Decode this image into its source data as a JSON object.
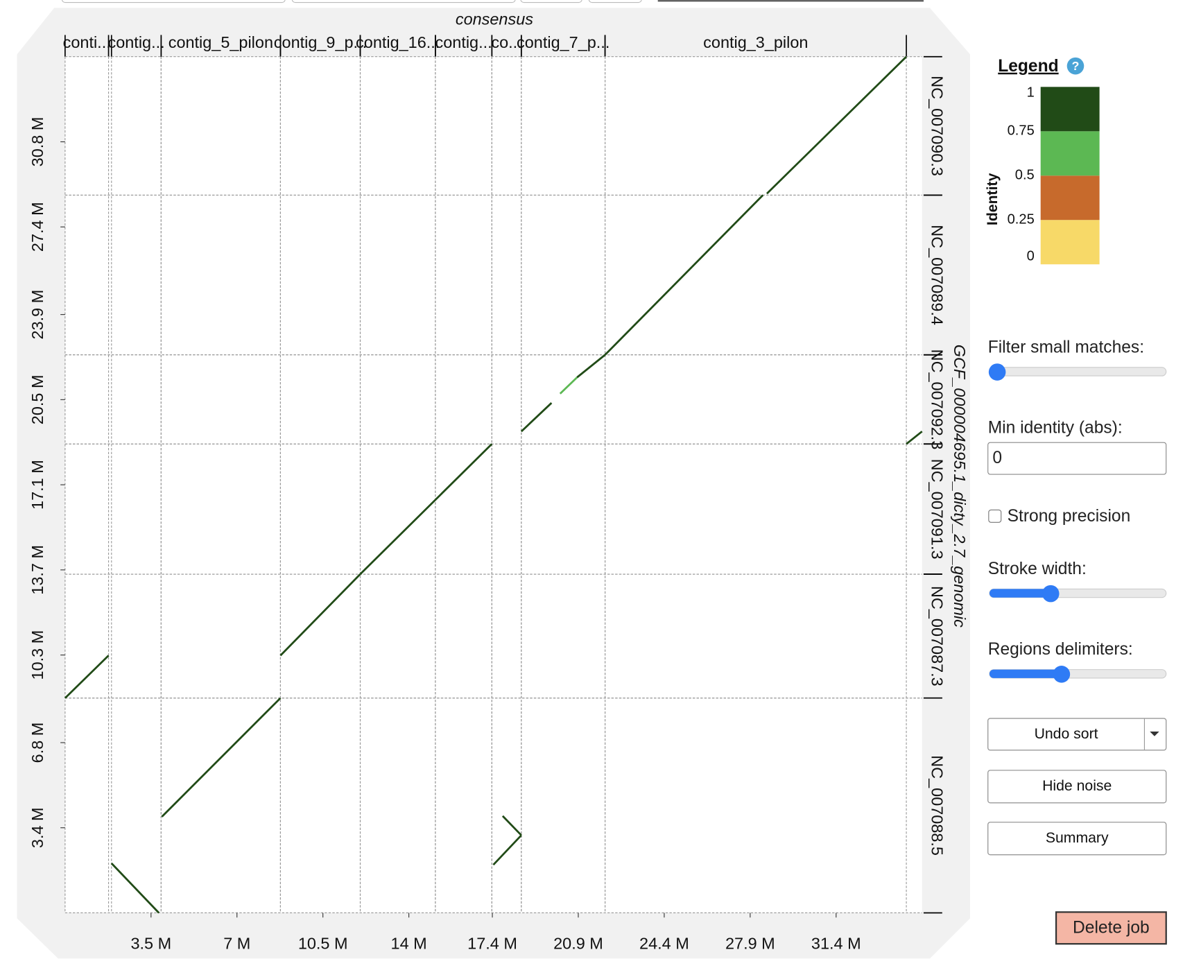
{
  "chart_data": {
    "type": "dotplot",
    "x_title": "consensus",
    "y_title": "GCF_000004695.1_dicty_2.7_genomic",
    "xlim": [
      0,
      34.9
    ],
    "ylim": [
      0,
      34.2
    ],
    "xticks": [
      {
        "value": 3.5,
        "label": "3.5 M"
      },
      {
        "value": 7,
        "label": "7 M"
      },
      {
        "value": 10.5,
        "label": "10.5 M"
      },
      {
        "value": 14,
        "label": "14 M"
      },
      {
        "value": 17.4,
        "label": "17.4 M"
      },
      {
        "value": 20.9,
        "label": "20.9 M"
      },
      {
        "value": 24.4,
        "label": "24.4 M"
      },
      {
        "value": 27.9,
        "label": "27.9 M"
      },
      {
        "value": 31.4,
        "label": "31.4 M"
      }
    ],
    "yticks": [
      {
        "value": 3.4,
        "label": "3.4 M"
      },
      {
        "value": 6.8,
        "label": "6.8 M"
      },
      {
        "value": 10.3,
        "label": "10.3 M"
      },
      {
        "value": 13.7,
        "label": "13.7 M"
      },
      {
        "value": 17.1,
        "label": "17.1 M"
      },
      {
        "value": 20.5,
        "label": "20.5 M"
      },
      {
        "value": 23.9,
        "label": "23.9 M"
      },
      {
        "value": 27.4,
        "label": "27.4 M"
      },
      {
        "value": 30.8,
        "label": "30.8 M"
      }
    ],
    "x_contigs": [
      {
        "label": "conti...",
        "start": 0,
        "end": 1.77
      },
      {
        "label": "contig...",
        "start": 1.89,
        "end": 3.91
      },
      {
        "label": "contig_5_pilon",
        "start": 3.91,
        "end": 8.77
      },
      {
        "label": "contig_9_p...",
        "start": 8.77,
        "end": 12.02
      },
      {
        "label": "contig_16...",
        "start": 12.02,
        "end": 15.08
      },
      {
        "label": "contig...",
        "start": 15.08,
        "end": 17.38
      },
      {
        "label": "co...",
        "start": 17.38,
        "end": 18.58
      },
      {
        "label": "contig_7_p...",
        "start": 18.58,
        "end": 21.99
      },
      {
        "label": "contig_3_pilon",
        "start": 21.99,
        "end": 34.26
      }
    ],
    "y_contigs": [
      {
        "label": "NC_007088.5",
        "start": 0,
        "end": 8.58
      },
      {
        "label": "NC_007087.3",
        "start": 8.58,
        "end": 13.53
      },
      {
        "label": "NC_007091.3",
        "start": 13.53,
        "end": 18.73
      },
      {
        "label": "NC_007092.3",
        "start": 18.73,
        "end": 22.29
      },
      {
        "label": "NC_007089.4",
        "start": 22.29,
        "end": 28.67
      },
      {
        "label": "NC_007090.3",
        "start": 28.67,
        "end": 34.2
      }
    ],
    "matches": [
      {
        "x": [
          0,
          1.77
        ],
        "y": [
          8.58,
          10.28
        ],
        "identity": 0.9
      },
      {
        "x": [
          1.89,
          3.82
        ],
        "y": [
          1.98,
          0
        ],
        "identity": 0.9
      },
      {
        "x": [
          3.94,
          8.77
        ],
        "y": [
          3.84,
          8.58
        ],
        "identity": 0.9
      },
      {
        "x": [
          8.77,
          12.02
        ],
        "y": [
          10.28,
          13.53
        ],
        "identity": 0.9
      },
      {
        "x": [
          12.02,
          17.38
        ],
        "y": [
          13.53,
          18.73
        ],
        "identity": 0.9
      },
      {
        "x": [
          17.44,
          18.58
        ],
        "y": [
          1.92,
          3.1
        ],
        "identity": 0.9
      },
      {
        "x": [
          17.82,
          18.58
        ],
        "y": [
          3.87,
          3.1
        ],
        "identity": 0.9
      },
      {
        "x": [
          18.58,
          19.81
        ],
        "y": [
          19.23,
          20.37
        ],
        "identity": 0.9
      },
      {
        "x": [
          20.16,
          20.85
        ],
        "y": [
          20.74,
          21.39
        ],
        "identity": 0.6
      },
      {
        "x": [
          20.85,
          21.99
        ],
        "y": [
          21.39,
          22.29
        ],
        "identity": 0.9
      },
      {
        "x": [
          21.99,
          28.42
        ],
        "y": [
          22.29,
          28.67
        ],
        "identity": 0.9
      },
      {
        "x": [
          28.58,
          34.26
        ],
        "y": [
          28.73,
          34.2
        ],
        "identity": 0.9
      },
      {
        "x": [
          34.26,
          34.9
        ],
        "y": [
          18.73,
          19.23
        ],
        "identity": 0.9
      }
    ],
    "legend": {
      "title": "Legend",
      "label": "Identity",
      "ticks": [
        0,
        0.25,
        0.5,
        0.75,
        1
      ],
      "colors": [
        "#f7d968",
        "#c76a2c",
        "#5cb853",
        "#214b17"
      ]
    }
  },
  "controls": {
    "filter_small_matches": "Filter small matches:",
    "min_identity": "Min identity (abs):",
    "min_identity_value": "0",
    "strong_precision": "Strong precision",
    "stroke_width": "Stroke width:",
    "regions_delimiters": "Regions delimiters:",
    "buttons": [
      "Undo sort",
      "Hide noise",
      "Summary"
    ],
    "delete_job": "Delete job"
  }
}
